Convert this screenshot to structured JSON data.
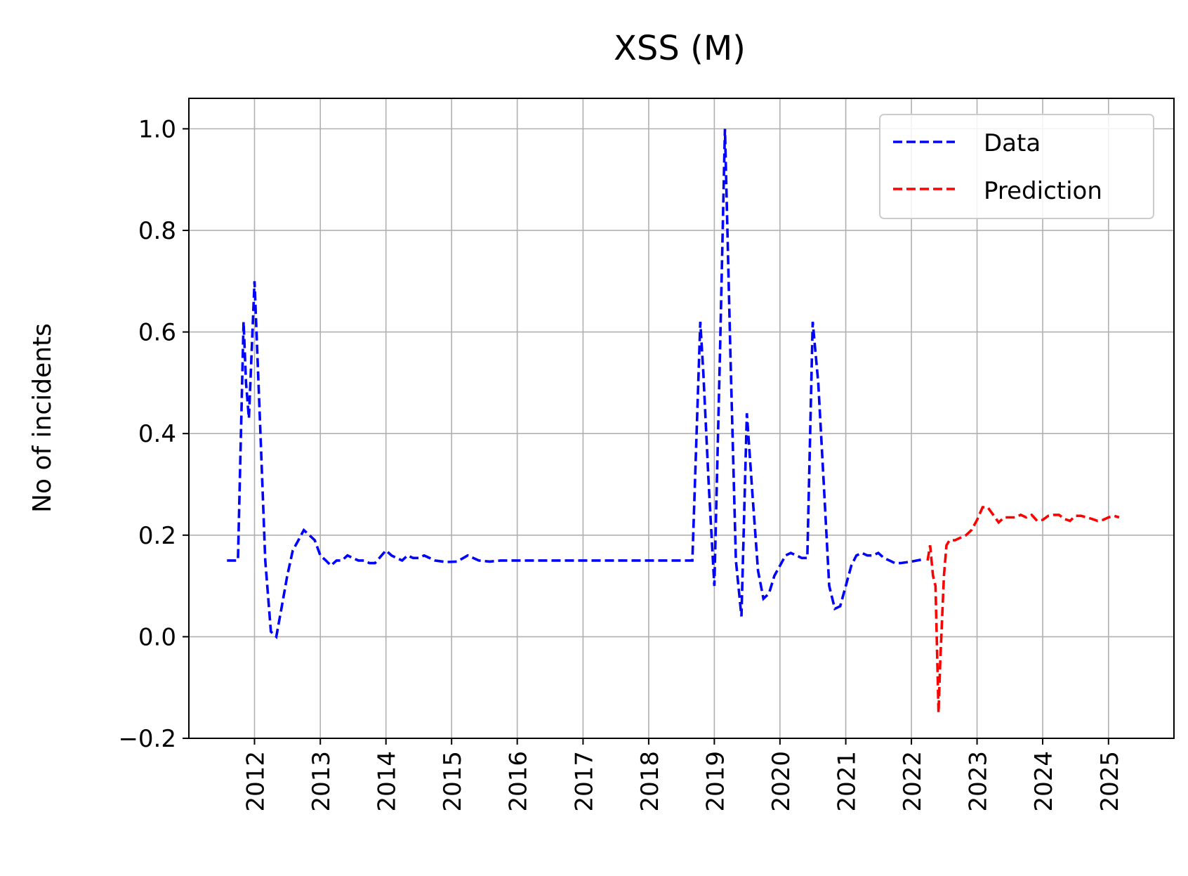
{
  "chart_data": {
    "type": "line",
    "title": "XSS (M)",
    "xlabel": "",
    "ylabel": "No of incidents",
    "x_is_date": true,
    "xlim": [
      "2011-01-01",
      "2025-12-31"
    ],
    "ylim": [
      -0.2,
      1.06
    ],
    "x_ticks": [
      "2012",
      "2013",
      "2014",
      "2015",
      "2016",
      "2017",
      "2018",
      "2019",
      "2020",
      "2021",
      "2022",
      "2023",
      "2024",
      "2025"
    ],
    "y_ticks": [
      "-0.2",
      "0.0",
      "0.2",
      "0.4",
      "0.6",
      "0.8",
      "1.0"
    ],
    "grid": true,
    "legend_position": "top-right",
    "series": [
      {
        "name": "Data",
        "color": "#0000ff",
        "style": "dashed",
        "points": [
          [
            "2011-08-01",
            0.15
          ],
          [
            "2011-09-01",
            0.15
          ],
          [
            "2011-10-01",
            0.15
          ],
          [
            "2011-11-01",
            0.62
          ],
          [
            "2011-11-15",
            0.5
          ],
          [
            "2011-12-01",
            0.43
          ],
          [
            "2011-12-15",
            0.55
          ],
          [
            "2012-01-01",
            0.7
          ],
          [
            "2012-02-01",
            0.42
          ],
          [
            "2012-03-01",
            0.15
          ],
          [
            "2012-04-01",
            0.01
          ],
          [
            "2012-05-01",
            0.0
          ],
          [
            "2012-06-01",
            0.06
          ],
          [
            "2012-07-01",
            0.12
          ],
          [
            "2012-08-01",
            0.17
          ],
          [
            "2012-09-01",
            0.19
          ],
          [
            "2012-10-01",
            0.21
          ],
          [
            "2012-11-01",
            0.2
          ],
          [
            "2012-12-01",
            0.19
          ],
          [
            "2013-01-01",
            0.16
          ],
          [
            "2013-02-01",
            0.15
          ],
          [
            "2013-03-01",
            0.14
          ],
          [
            "2013-04-01",
            0.15
          ],
          [
            "2013-05-01",
            0.15
          ],
          [
            "2013-06-01",
            0.16
          ],
          [
            "2013-07-01",
            0.155
          ],
          [
            "2013-08-01",
            0.15
          ],
          [
            "2013-09-01",
            0.15
          ],
          [
            "2013-10-01",
            0.145
          ],
          [
            "2013-11-01",
            0.145
          ],
          [
            "2014-01-01",
            0.17
          ],
          [
            "2014-02-01",
            0.16
          ],
          [
            "2014-03-01",
            0.155
          ],
          [
            "2014-04-01",
            0.15
          ],
          [
            "2014-05-01",
            0.16
          ],
          [
            "2014-06-01",
            0.155
          ],
          [
            "2014-07-01",
            0.155
          ],
          [
            "2014-08-01",
            0.16
          ],
          [
            "2014-09-01",
            0.155
          ],
          [
            "2014-10-01",
            0.15
          ],
          [
            "2014-12-01",
            0.147
          ],
          [
            "2015-02-01",
            0.148
          ],
          [
            "2015-04-01",
            0.16
          ],
          [
            "2015-06-01",
            0.15
          ],
          [
            "2015-08-01",
            0.148
          ],
          [
            "2015-10-01",
            0.15
          ],
          [
            "2016-01-01",
            0.15
          ],
          [
            "2017-01-01",
            0.15
          ],
          [
            "2018-01-01",
            0.15
          ],
          [
            "2018-09-01",
            0.15
          ],
          [
            "2018-10-15",
            0.62
          ],
          [
            "2018-11-01",
            0.52
          ],
          [
            "2018-12-01",
            0.3
          ],
          [
            "2019-01-01",
            0.1
          ],
          [
            "2019-02-01",
            0.55
          ],
          [
            "2019-03-01",
            1.0
          ],
          [
            "2019-04-01",
            0.55
          ],
          [
            "2019-05-01",
            0.15
          ],
          [
            "2019-06-01",
            0.04
          ],
          [
            "2019-07-01",
            0.44
          ],
          [
            "2019-08-01",
            0.28
          ],
          [
            "2019-09-01",
            0.13
          ],
          [
            "2019-10-01",
            0.075
          ],
          [
            "2019-11-01",
            0.085
          ],
          [
            "2019-12-01",
            0.12
          ],
          [
            "2020-01-01",
            0.14
          ],
          [
            "2020-02-01",
            0.16
          ],
          [
            "2020-03-01",
            0.165
          ],
          [
            "2020-04-01",
            0.16
          ],
          [
            "2020-05-01",
            0.155
          ],
          [
            "2020-06-01",
            0.155
          ],
          [
            "2020-07-01",
            0.62
          ],
          [
            "2020-08-01",
            0.5
          ],
          [
            "2020-09-01",
            0.3
          ],
          [
            "2020-10-01",
            0.1
          ],
          [
            "2020-11-01",
            0.055
          ],
          [
            "2020-12-01",
            0.06
          ],
          [
            "2021-01-01",
            0.1
          ],
          [
            "2021-02-01",
            0.14
          ],
          [
            "2021-03-01",
            0.16
          ],
          [
            "2021-04-01",
            0.165
          ],
          [
            "2021-05-01",
            0.16
          ],
          [
            "2021-06-01",
            0.16
          ],
          [
            "2021-07-01",
            0.165
          ],
          [
            "2021-08-01",
            0.155
          ],
          [
            "2021-09-01",
            0.15
          ],
          [
            "2021-10-01",
            0.145
          ],
          [
            "2021-11-01",
            0.145
          ],
          [
            "2022-01-01",
            0.148
          ],
          [
            "2022-03-01",
            0.152
          ]
        ]
      },
      {
        "name": "Prediction",
        "color": "#ff0000",
        "style": "dashed",
        "points": [
          [
            "2022-04-01",
            0.15
          ],
          [
            "2022-04-15",
            0.18
          ],
          [
            "2022-05-01",
            0.12
          ],
          [
            "2022-05-15",
            0.1
          ],
          [
            "2022-06-01",
            -0.15
          ],
          [
            "2022-06-10",
            -0.05
          ],
          [
            "2022-07-01",
            0.12
          ],
          [
            "2022-07-15",
            0.18
          ],
          [
            "2022-08-01",
            0.19
          ],
          [
            "2022-09-01",
            0.19
          ],
          [
            "2022-10-01",
            0.195
          ],
          [
            "2022-11-01",
            0.2
          ],
          [
            "2022-12-01",
            0.21
          ],
          [
            "2023-01-01",
            0.23
          ],
          [
            "2023-02-01",
            0.255
          ],
          [
            "2023-03-01",
            0.255
          ],
          [
            "2023-04-01",
            0.24
          ],
          [
            "2023-05-01",
            0.225
          ],
          [
            "2023-06-01",
            0.235
          ],
          [
            "2023-07-01",
            0.235
          ],
          [
            "2023-08-01",
            0.235
          ],
          [
            "2023-09-01",
            0.24
          ],
          [
            "2023-10-01",
            0.235
          ],
          [
            "2023-11-01",
            0.24
          ],
          [
            "2023-12-01",
            0.228
          ],
          [
            "2024-01-01",
            0.23
          ],
          [
            "2024-02-01",
            0.238
          ],
          [
            "2024-03-01",
            0.24
          ],
          [
            "2024-04-01",
            0.24
          ],
          [
            "2024-05-01",
            0.232
          ],
          [
            "2024-06-01",
            0.228
          ],
          [
            "2024-07-01",
            0.238
          ],
          [
            "2024-08-01",
            0.238
          ],
          [
            "2024-09-01",
            0.235
          ],
          [
            "2024-10-01",
            0.232
          ],
          [
            "2024-11-01",
            0.228
          ],
          [
            "2024-12-01",
            0.23
          ],
          [
            "2025-01-01",
            0.235
          ],
          [
            "2025-02-01",
            0.238
          ],
          [
            "2025-03-01",
            0.235
          ]
        ]
      }
    ]
  }
}
